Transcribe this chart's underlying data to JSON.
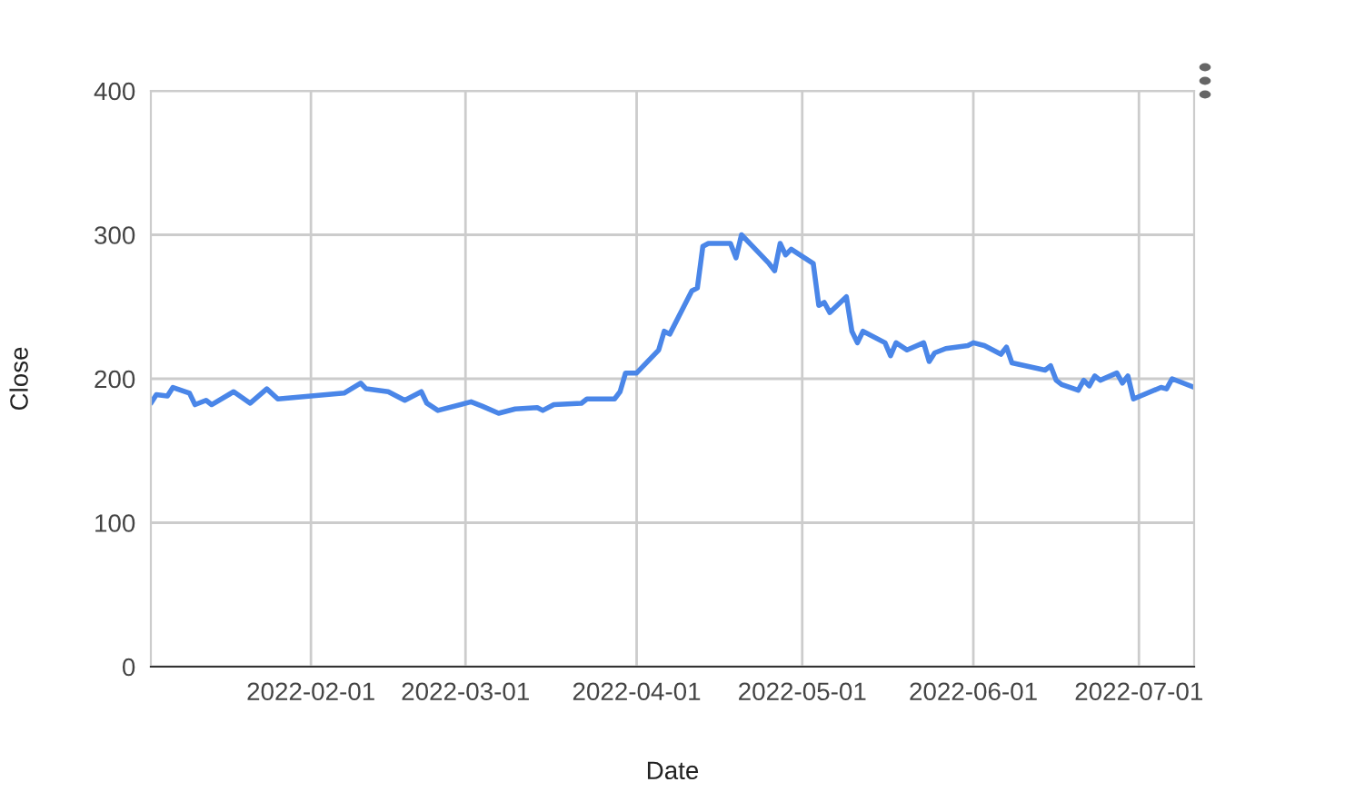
{
  "chart_data": {
    "type": "line",
    "xlabel": "Date",
    "ylabel": "Close",
    "x": [
      "2022-01-03",
      "2022-01-04",
      "2022-01-06",
      "2022-01-07",
      "2022-01-10",
      "2022-01-11",
      "2022-01-13",
      "2022-01-14",
      "2022-01-18",
      "2022-01-21",
      "2022-01-24",
      "2022-01-26",
      "2022-02-07",
      "2022-02-10",
      "2022-02-11",
      "2022-02-15",
      "2022-02-18",
      "2022-02-21",
      "2022-02-22",
      "2022-02-24",
      "2022-03-02",
      "2022-03-04",
      "2022-03-07",
      "2022-03-10",
      "2022-03-14",
      "2022-03-15",
      "2022-03-17",
      "2022-03-22",
      "2022-03-23",
      "2022-03-28",
      "2022-03-29",
      "2022-03-30",
      "2022-04-01",
      "2022-04-05",
      "2022-04-06",
      "2022-04-07",
      "2022-04-11",
      "2022-04-12",
      "2022-04-13",
      "2022-04-14",
      "2022-04-18",
      "2022-04-19",
      "2022-04-20",
      "2022-04-22",
      "2022-04-25",
      "2022-04-26",
      "2022-04-27",
      "2022-04-28",
      "2022-04-29",
      "2022-05-03",
      "2022-05-04",
      "2022-05-05",
      "2022-05-06",
      "2022-05-09",
      "2022-05-10",
      "2022-05-11",
      "2022-05-12",
      "2022-05-16",
      "2022-05-17",
      "2022-05-18",
      "2022-05-20",
      "2022-05-23",
      "2022-05-24",
      "2022-05-25",
      "2022-05-27",
      "2022-05-31",
      "2022-06-01",
      "2022-06-03",
      "2022-06-06",
      "2022-06-07",
      "2022-06-08",
      "2022-06-14",
      "2022-06-15",
      "2022-06-16",
      "2022-06-17",
      "2022-06-20",
      "2022-06-21",
      "2022-06-22",
      "2022-06-23",
      "2022-06-24",
      "2022-06-27",
      "2022-06-28",
      "2022-06-29",
      "2022-06-30",
      "2022-07-05",
      "2022-07-06",
      "2022-07-07",
      "2022-07-11"
    ],
    "series": [
      {
        "color": "#4a86e8",
        "values": [
          183,
          189,
          188,
          194,
          190,
          182,
          185,
          182,
          191,
          183,
          193,
          186,
          190,
          197,
          193,
          191,
          185,
          191,
          183,
          178,
          184,
          181,
          176,
          179,
          180,
          178,
          182,
          183,
          186,
          186,
          191,
          204,
          204,
          220,
          233,
          231,
          261,
          263,
          292,
          294,
          294,
          284,
          300,
          292,
          280,
          275,
          294,
          286,
          290,
          280,
          251,
          253,
          246,
          257,
          233,
          225,
          233,
          225,
          216,
          225,
          220,
          225,
          212,
          218,
          221,
          223,
          225,
          223,
          217,
          222,
          211,
          206,
          209,
          199,
          196,
          192,
          199,
          195,
          202,
          199,
          204,
          197,
          202,
          186,
          194,
          193,
          200,
          194
        ]
      }
    ],
    "xlim": [
      "2022-01-03",
      "2022-07-11"
    ],
    "xticks": [
      {
        "value": "2022-02-01",
        "label": "2022-02-01"
      },
      {
        "value": "2022-03-01",
        "label": "2022-03-01"
      },
      {
        "value": "2022-04-01",
        "label": "2022-04-01"
      },
      {
        "value": "2022-05-01",
        "label": "2022-05-01"
      },
      {
        "value": "2022-06-01",
        "label": "2022-06-01"
      },
      {
        "value": "2022-07-01",
        "label": "2022-07-01"
      }
    ],
    "ylim": [
      0,
      400
    ],
    "yticks": [
      0,
      100,
      200,
      300,
      400
    ],
    "grid": true,
    "marker": "none",
    "line_style": "solid"
  }
}
